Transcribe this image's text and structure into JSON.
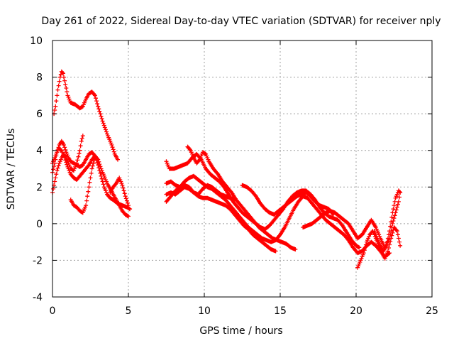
{
  "chart_data": {
    "type": "scatter",
    "title": "Day 261 of 2022, Sidereal Day-to-day VTEC variation (SDTVAR) for receiver nply",
    "xlabel": "GPS time / hours",
    "ylabel": "SDTVAR / TECUs",
    "xlim": [
      0,
      25
    ],
    "ylim": [
      -4,
      10
    ],
    "xticks": [
      0,
      5,
      10,
      15,
      20,
      25
    ],
    "yticks": [
      -4,
      -2,
      0,
      2,
      4,
      6,
      8,
      10
    ],
    "xtick_labels": [
      "0",
      "5",
      "10",
      "15",
      "20",
      "25"
    ],
    "ytick_labels": [
      "-4",
      "-2",
      "0",
      "2",
      "4",
      "6",
      "8",
      "10"
    ],
    "grid": true,
    "legend": "none",
    "marker": "+",
    "color": "#ff0000",
    "series": [
      {
        "name": "track-1",
        "x": [
          0.1,
          0.2,
          0.35,
          0.5,
          0.6,
          0.7,
          0.85,
          1.0,
          1.2,
          1.5,
          1.8,
          2.0,
          2.2,
          2.4,
          2.6,
          2.8,
          3.0,
          3.3,
          3.6,
          3.9,
          4.1,
          4.3
        ],
        "y": [
          6.0,
          6.4,
          7.3,
          8.0,
          8.3,
          8.2,
          7.6,
          7.0,
          6.6,
          6.5,
          6.3,
          6.4,
          6.8,
          7.1,
          7.2,
          7.0,
          6.4,
          5.6,
          4.9,
          4.3,
          3.8,
          3.5
        ]
      },
      {
        "name": "track-2",
        "x": [
          0.0,
          0.15,
          0.3,
          0.45,
          0.6,
          0.75,
          0.9,
          1.05,
          1.2,
          1.4,
          1.6,
          1.8,
          2.0,
          2.2,
          2.4,
          2.6,
          2.8,
          3.0,
          3.2,
          3.4,
          3.6,
          3.8,
          4.0,
          4.3,
          4.6,
          4.9,
          5.1
        ],
        "y": [
          2.8,
          3.3,
          3.9,
          4.3,
          4.5,
          4.3,
          3.9,
          3.6,
          3.4,
          3.3,
          3.2,
          3.1,
          3.2,
          3.5,
          3.8,
          3.9,
          3.7,
          3.2,
          2.6,
          2.0,
          1.6,
          1.4,
          1.3,
          1.1,
          1.0,
          0.9,
          0.8
        ]
      },
      {
        "name": "track-3",
        "x": [
          0.0,
          0.15,
          0.3,
          0.45,
          0.6,
          0.75,
          0.9,
          1.05,
          1.2,
          1.4,
          1.6,
          1.8,
          1.9,
          2.0
        ],
        "y": [
          1.7,
          2.3,
          2.9,
          3.3,
          3.6,
          3.8,
          3.6,
          3.3,
          3.0,
          2.9,
          3.3,
          4.0,
          4.5,
          4.8
        ]
      },
      {
        "name": "track-4",
        "x": [
          0.0,
          0.2,
          0.4,
          0.6,
          0.8,
          1.0,
          1.2,
          1.4,
          1.6,
          1.8,
          2.0,
          2.2,
          2.4,
          2.6,
          2.8,
          3.0,
          3.2,
          3.4,
          3.6,
          3.8,
          4.0,
          4.2,
          4.4,
          4.6,
          4.8,
          5.0
        ],
        "y": [
          3.3,
          3.7,
          4.1,
          4.0,
          3.6,
          3.1,
          2.7,
          2.5,
          2.4,
          2.6,
          2.8,
          3.0,
          3.2,
          3.5,
          3.7,
          3.5,
          3.0,
          2.6,
          2.2,
          1.9,
          1.6,
          1.3,
          1.0,
          0.7,
          0.5,
          0.4
        ]
      },
      {
        "name": "track-5",
        "x": [
          1.2,
          1.4,
          1.6,
          1.8,
          2.0,
          2.2,
          2.4,
          2.6,
          2.8
        ],
        "y": [
          1.3,
          1.0,
          0.9,
          0.7,
          0.6,
          1.0,
          2.0,
          3.0,
          3.6
        ]
      },
      {
        "name": "track-6",
        "x": [
          3.8,
          4.0,
          4.2,
          4.4,
          4.6,
          4.8,
          5.0
        ],
        "y": [
          1.7,
          2.0,
          2.2,
          2.5,
          2.1,
          1.5,
          1.0
        ]
      },
      {
        "name": "track-7",
        "x": [
          7.5,
          7.7,
          8.0,
          8.3,
          8.6,
          8.9,
          9.2,
          9.5,
          9.8,
          10.1,
          10.4,
          10.7,
          11.0,
          11.3,
          11.6,
          11.9,
          12.2,
          12.5,
          12.8,
          13.1,
          13.4,
          13.7,
          14.0,
          14.3,
          14.6,
          14.9,
          15.2,
          15.5,
          15.8,
          16.1,
          16.4,
          16.7,
          17.0,
          17.3,
          17.6,
          17.9,
          18.2,
          18.5,
          18.8,
          19.1,
          19.4,
          19.7,
          20.0,
          20.2
        ],
        "y": [
          3.4,
          3.0,
          3.0,
          3.1,
          3.2,
          3.3,
          3.6,
          3.8,
          3.5,
          3.0,
          2.7,
          2.5,
          2.3,
          2.0,
          1.6,
          1.2,
          0.9,
          0.6,
          0.4,
          0.2,
          0.0,
          -0.2,
          -0.3,
          -0.1,
          0.2,
          0.5,
          0.8,
          1.2,
          1.5,
          1.7,
          1.8,
          1.8,
          1.6,
          1.3,
          0.9,
          0.6,
          0.4,
          0.3,
          0.2,
          -0.1,
          -0.5,
          -0.9,
          -1.2,
          -1.3
        ]
      },
      {
        "name": "track-8",
        "x": [
          7.5,
          7.8,
          8.1,
          8.4,
          8.7,
          9.0,
          9.3,
          9.6,
          9.9,
          10.2,
          10.5,
          10.8,
          11.1,
          11.4,
          11.7,
          12.0,
          12.3,
          12.6,
          12.9,
          13.2,
          13.5,
          13.8,
          14.1,
          14.4,
          14.7,
          15.0,
          15.3,
          15.6,
          15.9,
          16.2,
          16.5,
          16.8,
          17.1,
          17.4,
          17.7,
          18.0,
          18.3,
          18.6,
          18.9,
          19.2,
          19.5,
          19.8,
          20.1,
          20.4,
          20.7,
          21.0,
          21.3,
          21.6,
          21.9,
          22.2
        ],
        "y": [
          2.2,
          2.3,
          2.1,
          2.0,
          2.3,
          2.5,
          2.6,
          2.4,
          2.2,
          2.0,
          1.9,
          1.7,
          1.5,
          1.3,
          1.0,
          0.7,
          0.4,
          0.1,
          -0.2,
          -0.4,
          -0.6,
          -0.8,
          -0.9,
          -1.0,
          -0.9,
          -0.6,
          -0.2,
          0.3,
          0.8,
          1.2,
          1.5,
          1.4,
          1.1,
          0.8,
          0.5,
          0.2,
          0.0,
          -0.2,
          -0.4,
          -0.6,
          -0.9,
          -1.3,
          -1.6,
          -1.5,
          -1.2,
          -1.0,
          -1.2,
          -1.5,
          -1.8,
          -1.6
        ]
      },
      {
        "name": "track-9",
        "x": [
          7.5,
          7.8,
          8.1,
          8.4,
          8.7,
          9.0,
          9.3,
          9.6,
          9.9,
          10.2,
          10.5,
          10.8,
          11.1,
          11.4,
          11.7,
          12.0,
          12.3,
          12.6,
          12.9,
          13.2,
          13.5,
          13.8,
          14.1,
          14.4,
          14.7
        ],
        "y": [
          1.6,
          1.7,
          1.6,
          1.8,
          2.0,
          1.9,
          1.7,
          1.5,
          1.4,
          1.4,
          1.3,
          1.2,
          1.1,
          1.0,
          0.8,
          0.5,
          0.2,
          -0.1,
          -0.3,
          -0.6,
          -0.8,
          -1.0,
          -1.2,
          -1.4,
          -1.5
        ]
      },
      {
        "name": "track-10",
        "x": [
          7.5,
          7.8,
          8.1,
          8.4,
          8.7,
          9.0,
          9.3,
          9.6,
          9.9,
          10.2,
          10.5,
          10.8,
          11.1,
          11.4,
          11.7,
          12.0
        ],
        "y": [
          1.2,
          1.5,
          1.8,
          2.0,
          2.1,
          2.0,
          1.7,
          1.6,
          1.9,
          2.1,
          2.0,
          1.8,
          1.6,
          1.5,
          1.4,
          1.3
        ]
      },
      {
        "name": "track-11",
        "x": [
          8.9,
          9.1,
          9.3,
          9.5,
          9.7,
          9.9,
          10.1,
          10.3,
          10.6,
          10.9,
          11.2,
          11.5,
          11.8,
          12.1,
          12.4,
          12.7,
          13.0,
          13.3,
          13.6,
          13.9,
          14.2,
          14.5,
          14.8,
          15.1,
          15.4,
          15.7,
          16.0
        ],
        "y": [
          4.2,
          4.0,
          3.6,
          3.3,
          3.5,
          3.9,
          3.8,
          3.4,
          3.0,
          2.7,
          2.3,
          2.0,
          1.7,
          1.3,
          1.0,
          0.7,
          0.4,
          0.1,
          -0.2,
          -0.4,
          -0.6,
          -0.8,
          -0.9,
          -1.0,
          -1.1,
          -1.3,
          -1.4
        ]
      },
      {
        "name": "track-12",
        "x": [
          12.5,
          12.8,
          13.1,
          13.4,
          13.7,
          14.0,
          14.3,
          14.6,
          14.9,
          15.2,
          15.5,
          15.8,
          16.1,
          16.4,
          16.7,
          17.0,
          17.3,
          17.6,
          17.9,
          18.2,
          18.5
        ],
        "y": [
          2.1,
          2.0,
          1.8,
          1.5,
          1.1,
          0.8,
          0.6,
          0.5,
          0.7,
          0.9,
          1.1,
          1.3,
          1.5,
          1.6,
          1.7,
          1.5,
          1.2,
          1.0,
          0.9,
          0.8,
          0.5
        ]
      },
      {
        "name": "track-13",
        "x": [
          16.5,
          16.8,
          17.1,
          17.4,
          17.7,
          18.0,
          18.3,
          18.6,
          18.9,
          19.2,
          19.5,
          19.8,
          20.1,
          20.4,
          20.7,
          21.0,
          21.3,
          21.6,
          21.9,
          22.2,
          22.4,
          22.6,
          22.8,
          22.9
        ],
        "y": [
          -0.2,
          -0.1,
          0.0,
          0.2,
          0.4,
          0.6,
          0.7,
          0.6,
          0.4,
          0.2,
          0.0,
          -0.4,
          -0.8,
          -0.6,
          -0.2,
          0.2,
          -0.2,
          -0.8,
          -1.3,
          -0.8,
          0.0,
          0.6,
          1.2,
          1.7
        ]
      },
      {
        "name": "track-14",
        "x": [
          20.1,
          20.3,
          20.5,
          20.7,
          20.9,
          21.1,
          21.3,
          21.5,
          21.7,
          21.9,
          22.1,
          22.3,
          22.5,
          22.7,
          22.9
        ],
        "y": [
          -2.4,
          -2.0,
          -1.6,
          -1.0,
          -0.6,
          -0.4,
          -0.8,
          -1.2,
          -1.6,
          -1.9,
          -1.5,
          -0.8,
          -0.2,
          -0.4,
          -1.2
        ]
      },
      {
        "name": "track-15",
        "x": [
          21.2,
          21.4,
          21.6,
          21.8,
          22.0,
          22.2,
          22.4,
          22.6,
          22.8,
          22.9
        ],
        "y": [
          -0.4,
          -0.8,
          -1.2,
          -1.5,
          -1.2,
          -0.4,
          0.6,
          1.4,
          1.8,
          1.7
        ]
      }
    ]
  }
}
